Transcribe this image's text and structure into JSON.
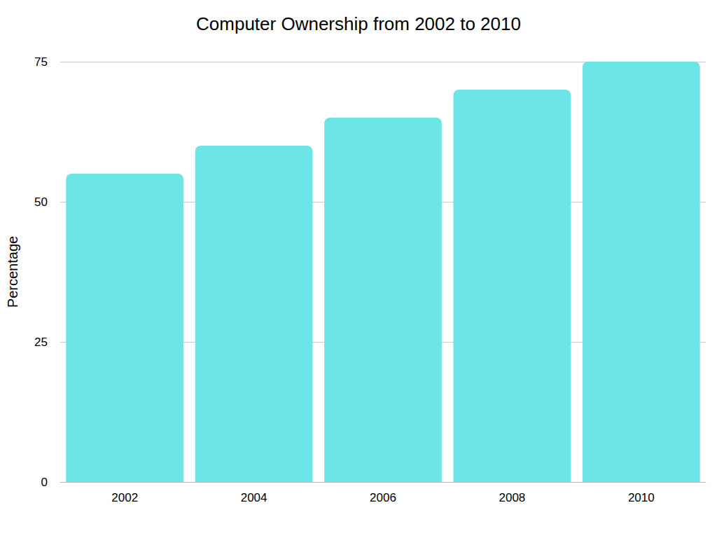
{
  "chart_data": {
    "type": "bar",
    "title": "Computer Ownership from 2002 to 2010",
    "y_label": "Percentage",
    "categories": [
      "2002",
      "2004",
      "2006",
      "2008",
      "2010"
    ],
    "values": [
      55,
      60,
      65,
      70,
      75
    ],
    "color": "#6ce5e8",
    "ylim": [
      0,
      75
    ],
    "yticks": [
      0,
      25,
      50,
      75
    ],
    "grid": true
  }
}
